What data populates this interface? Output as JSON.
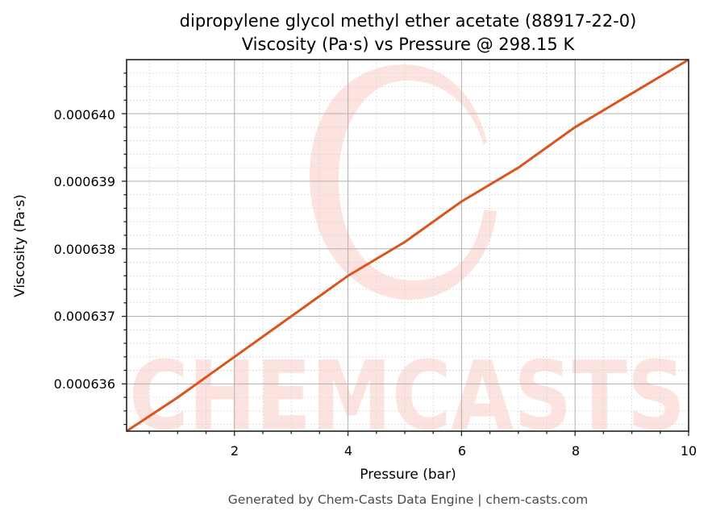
{
  "chart": {
    "title_line1": "dipropylene glycol methyl ether acetate (88917-22-0)",
    "title_line2": "Viscosity (Pa·s) vs Pressure @ 298.15 K",
    "xlabel": "Pressure (bar)",
    "ylabel": "Viscosity (Pa·s)",
    "footer": "Generated by Chem-Casts Data Engine | chem-casts.com",
    "watermark_text": "CHEMCASTS",
    "x_ticks": [
      "2",
      "4",
      "6",
      "8",
      "10"
    ],
    "y_ticks": [
      "0.000640",
      "0.000639",
      "0.000638",
      "0.000637",
      "0.000636"
    ],
    "line_color": "#d9541e",
    "watermark_color": "#fde3df"
  },
  "chart_data": {
    "type": "line",
    "title": "dipropylene glycol methyl ether acetate (88917-22-0)\nViscosity (Pa·s) vs Pressure @ 298.15 K",
    "xlabel": "Pressure (bar)",
    "ylabel": "Viscosity (Pa·s)",
    "xlim": [
      0.1,
      10
    ],
    "ylim": [
      0.0006353,
      0.0006408
    ],
    "x_ticks": [
      2,
      4,
      6,
      8,
      10
    ],
    "y_ticks": [
      0.000636,
      0.000637,
      0.000638,
      0.000639,
      0.00064
    ],
    "grid": true,
    "minor_grid": true,
    "legend": null,
    "series": [
      {
        "name": "Viscosity",
        "color": "#d9541e",
        "x": [
          0.1,
          1,
          2,
          3,
          4,
          5,
          6,
          7,
          8,
          9,
          10
        ],
        "y": [
          0.0006353,
          0.0006358,
          0.0006364,
          0.000637,
          0.0006376,
          0.0006381,
          0.0006387,
          0.0006392,
          0.0006398,
          0.0006403,
          0.0006408
        ]
      }
    ]
  }
}
